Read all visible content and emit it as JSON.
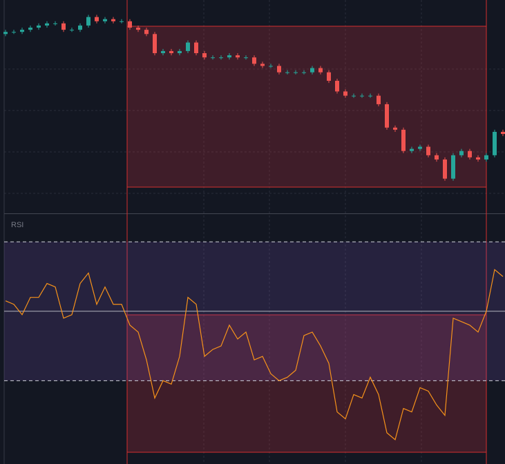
{
  "chart_data": [
    {
      "type": "candlestick",
      "ylim": [
        0,
        100
      ],
      "values": [
        [
          84,
          86,
          83,
          85
        ],
        [
          85,
          86,
          84,
          85
        ],
        [
          85,
          87,
          84,
          86
        ],
        [
          86,
          88,
          85,
          87
        ],
        [
          87,
          89,
          86,
          88
        ],
        [
          88,
          90,
          87,
          89
        ],
        [
          89,
          90,
          88,
          89
        ],
        [
          89,
          90,
          85,
          86
        ],
        [
          86,
          87,
          85,
          86
        ],
        [
          86,
          89,
          85,
          88
        ],
        [
          88,
          93,
          87,
          92
        ],
        [
          92,
          93,
          89,
          90
        ],
        [
          90,
          92,
          89,
          91
        ],
        [
          91,
          92,
          89,
          90
        ],
        [
          90,
          91,
          89,
          90
        ],
        [
          90,
          91,
          86,
          87
        ],
        [
          87,
          88,
          85,
          86
        ],
        [
          86,
          87,
          83,
          84
        ],
        [
          84,
          85,
          74,
          75
        ],
        [
          75,
          77,
          74,
          76
        ],
        [
          76,
          77,
          74,
          75
        ],
        [
          75,
          77,
          74,
          76
        ],
        [
          76,
          81,
          75,
          80
        ],
        [
          80,
          81,
          74,
          75
        ],
        [
          75,
          76,
          72,
          73
        ],
        [
          73,
          74,
          72,
          73
        ],
        [
          73,
          74,
          72,
          73
        ],
        [
          73,
          75,
          72,
          74
        ],
        [
          74,
          75,
          72,
          73
        ],
        [
          73,
          74,
          72,
          73
        ],
        [
          73,
          74,
          69,
          70
        ],
        [
          70,
          71,
          68,
          69
        ],
        [
          69,
          70,
          68,
          69
        ],
        [
          69,
          70,
          65,
          66
        ],
        [
          66,
          67,
          65,
          66
        ],
        [
          66,
          67,
          65,
          66
        ],
        [
          66,
          67,
          65,
          66
        ],
        [
          66,
          69,
          65,
          68
        ],
        [
          68,
          69,
          65,
          66
        ],
        [
          66,
          67,
          61,
          62
        ],
        [
          62,
          63,
          56,
          57
        ],
        [
          57,
          58,
          54,
          55
        ],
        [
          55,
          56,
          54,
          55
        ],
        [
          55,
          56,
          54,
          55
        ],
        [
          55,
          56,
          54,
          55
        ],
        [
          55,
          56,
          50,
          51
        ],
        [
          51,
          52,
          39,
          40
        ],
        [
          40,
          41,
          38,
          39
        ],
        [
          39,
          40,
          28,
          29
        ],
        [
          29,
          31,
          28,
          30
        ],
        [
          30,
          32,
          29,
          31
        ],
        [
          31,
          32,
          26,
          27
        ],
        [
          27,
          28,
          24,
          25
        ],
        [
          25,
          26,
          15,
          16
        ],
        [
          16,
          28,
          15,
          27
        ],
        [
          27,
          30,
          26,
          29
        ],
        [
          29,
          30,
          25,
          26
        ],
        [
          26,
          27,
          24,
          25
        ],
        [
          25,
          28,
          24,
          27
        ],
        [
          27,
          39,
          26,
          38
        ],
        [
          38,
          39,
          36,
          37
        ]
      ],
      "up_color": "#26a69a",
      "down_color": "#ef5350"
    },
    {
      "type": "line",
      "title": "RSI",
      "ylim": [
        6,
        78
      ],
      "hlines": [
        70,
        50,
        30
      ],
      "color": "#f7931a",
      "values": [
        53,
        52,
        49,
        54,
        54,
        58,
        57,
        48,
        49,
        58,
        61,
        52,
        57,
        52,
        52,
        46,
        44,
        36,
        25,
        30,
        29,
        37,
        54,
        52,
        37,
        39,
        40,
        46,
        42,
        44,
        36,
        37,
        32,
        30,
        31,
        33,
        43,
        44,
        40,
        35,
        21,
        19,
        26,
        25,
        31,
        26,
        15,
        13,
        22,
        21,
        28,
        27,
        23,
        20,
        48,
        47,
        46,
        44,
        50,
        62,
        60
      ]
    }
  ]
}
